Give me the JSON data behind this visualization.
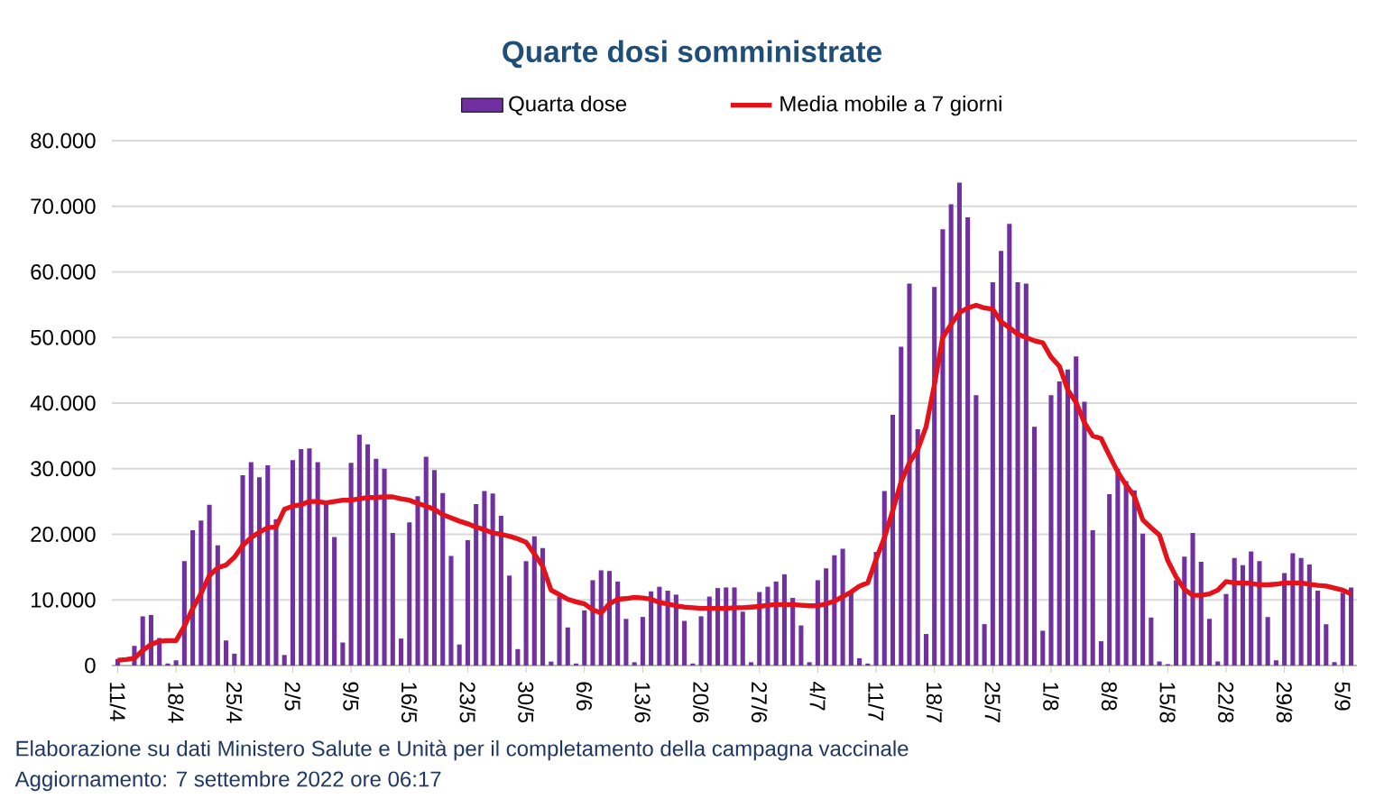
{
  "chart_data": {
    "type": "bar",
    "title": "Quarte dosi somministrate",
    "categories": [
      "11/4",
      null,
      null,
      null,
      null,
      null,
      null,
      "18/4",
      null,
      null,
      null,
      null,
      null,
      null,
      "25/4",
      null,
      null,
      null,
      null,
      null,
      null,
      "2/5",
      null,
      null,
      null,
      null,
      null,
      null,
      "9/5",
      null,
      null,
      null,
      null,
      null,
      null,
      "16/5",
      null,
      null,
      null,
      null,
      null,
      null,
      "23/5",
      null,
      null,
      null,
      null,
      null,
      null,
      "30/5",
      null,
      null,
      null,
      null,
      null,
      null,
      "6/6",
      null,
      null,
      null,
      null,
      null,
      null,
      "13/6",
      null,
      null,
      null,
      null,
      null,
      null,
      "20/6",
      null,
      null,
      null,
      null,
      null,
      null,
      "27/6",
      null,
      null,
      null,
      null,
      null,
      null,
      "4/7",
      null,
      null,
      null,
      null,
      null,
      null,
      "11/7",
      null,
      null,
      null,
      null,
      null,
      null,
      "18/7",
      null,
      null,
      null,
      null,
      null,
      null,
      "25/7",
      null,
      null,
      null,
      null,
      null,
      null,
      "1/8",
      null,
      null,
      null,
      null,
      null,
      null,
      "8/8",
      null,
      null,
      null,
      null,
      null,
      null,
      "15/8",
      null,
      null,
      null,
      null,
      null,
      null,
      "22/8",
      null,
      null,
      null,
      null,
      null,
      null,
      "29/8",
      null,
      null,
      null,
      null,
      null,
      null,
      "5/9",
      null
    ],
    "series": [
      {
        "name": "Quarta dose",
        "type": "bar",
        "color": "#7030a0",
        "values": [
          1000,
          null,
          3000,
          7500,
          7700,
          4200,
          300,
          800,
          15900,
          20600,
          22100,
          24500,
          18300,
          3800,
          1800,
          29000,
          31000,
          28700,
          30500,
          22300,
          1600,
          31300,
          33000,
          33100,
          31000,
          25000,
          19600,
          3500,
          30900,
          35200,
          33700,
          31500,
          30000,
          20200,
          4100,
          21800,
          25800,
          31800,
          29800,
          26300,
          16700,
          3200,
          19100,
          24600,
          26600,
          26200,
          22800,
          13700,
          2500,
          15900,
          19700,
          17900,
          600,
          10500,
          5800,
          300,
          8400,
          13000,
          14500,
          14400,
          12800,
          7100,
          500,
          7400,
          11300,
          12000,
          11400,
          10800,
          6800,
          300,
          7500,
          10500,
          11800,
          11900,
          11900,
          8200,
          500,
          11200,
          12000,
          12800,
          13900,
          10300,
          6100,
          500,
          13000,
          14800,
          16800,
          17800,
          11200,
          1100,
          300,
          17300,
          26600,
          38200,
          48600,
          58200,
          36000,
          4800,
          57700,
          66500,
          70300,
          73600,
          68300,
          41200,
          6300,
          58400,
          63200,
          67300,
          58400,
          58200,
          36400,
          5300,
          41200,
          43300,
          45100,
          47100,
          40200,
          20600,
          3700,
          26100,
          30000,
          28100,
          26700,
          20100,
          7300,
          600,
          200,
          13000,
          16600,
          20200,
          15800,
          7100,
          600,
          10900,
          16400,
          15300,
          17400,
          15900,
          7400,
          800,
          14100,
          17100,
          16400,
          15400,
          11400,
          6300,
          500,
          11100,
          11900
        ]
      },
      {
        "name": "Media mobile a 7 giorni",
        "type": "line",
        "color": "#e3121b",
        "values": [
          800,
          900,
          1100,
          2300,
          3200,
          3700,
          3800,
          3800,
          6000,
          8700,
          11000,
          13700,
          14900,
          15300,
          16500,
          18300,
          19500,
          20300,
          21000,
          21100,
          23800,
          24300,
          24500,
          25000,
          25000,
          24800,
          25000,
          25200,
          25200,
          25400,
          25600,
          25600,
          25700,
          25700,
          25400,
          25200,
          24700,
          24300,
          23800,
          23000,
          22500,
          22000,
          21600,
          21100,
          20700,
          20200,
          20000,
          19700,
          19300,
          18800,
          17000,
          15100,
          11500,
          10800,
          10100,
          9700,
          9400,
          8500,
          8000,
          9400,
          10100,
          10200,
          10400,
          10300,
          10100,
          9600,
          9400,
          9100,
          8900,
          8800,
          8700,
          8700,
          8700,
          8700,
          8800,
          8800,
          8900,
          9000,
          9200,
          9300,
          9300,
          9300,
          9200,
          9100,
          9100,
          9400,
          9800,
          10500,
          11200,
          12100,
          12600,
          16200,
          19500,
          23600,
          28000,
          30900,
          32900,
          36400,
          42800,
          50000,
          52000,
          53800,
          54500,
          54900,
          54500,
          54300,
          52400,
          51500,
          50500,
          50000,
          49500,
          49200,
          47000,
          45600,
          42000,
          40100,
          37000,
          35000,
          34600,
          32000,
          29500,
          27500,
          25800,
          22200,
          21000,
          19900,
          16000,
          13500,
          11600,
          10700,
          10700,
          10900,
          11500,
          12800,
          12600,
          12600,
          12500,
          12300,
          12300,
          12400,
          12600,
          12600,
          12600,
          12400,
          12200,
          12100,
          11800,
          11500,
          10900
        ]
      }
    ],
    "ylim": [
      0,
      80000
    ],
    "yticks": [
      0,
      {
        "value": 10000,
        "label": "10.000"
      },
      {
        "value": 20000,
        "label": "20.000"
      },
      {
        "value": 30000,
        "label": "30.000"
      },
      {
        "value": 40000,
        "label": "40.000"
      },
      {
        "value": 50000,
        "label": "50.000"
      },
      {
        "value": 60000,
        "label": "60.000"
      },
      {
        "value": 70000,
        "label": "70.000"
      },
      {
        "value": 80000,
        "label": "80.000"
      }
    ],
    "grid": "y",
    "legend": "top",
    "annotations": [
      "Elaborazione su dati Ministero Salute e Unità per il completamento della campagna vaccinale",
      "Aggiornamento: 7 settembre 2022 ore 06:17"
    ]
  }
}
